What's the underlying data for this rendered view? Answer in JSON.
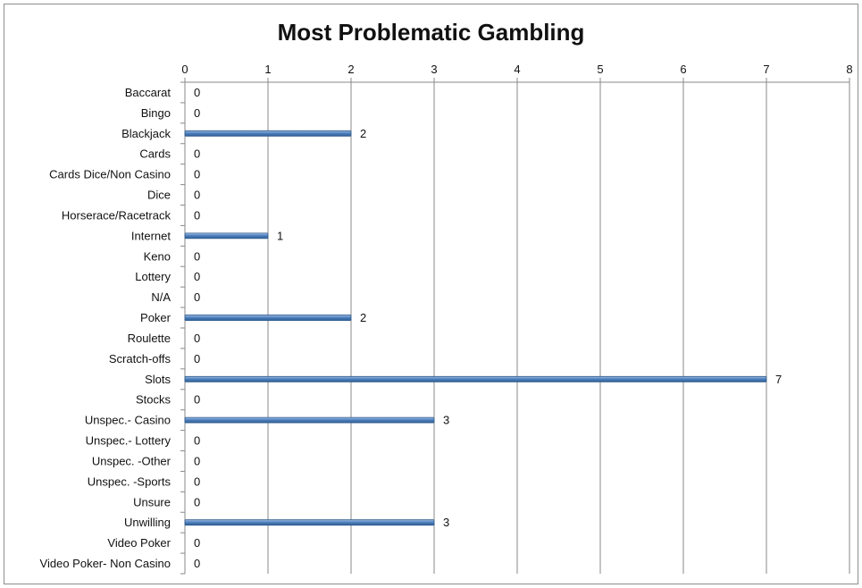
{
  "chart_data": {
    "type": "bar",
    "orientation": "horizontal",
    "title": "Most Problematic Gambling",
    "xlabel": "",
    "ylabel": "",
    "xlim": [
      0,
      8
    ],
    "x_ticks": [
      0,
      1,
      2,
      3,
      4,
      5,
      6,
      7,
      8
    ],
    "x_axis_position": "top",
    "grid": "vertical",
    "legend": "none",
    "bar_color": "#4f81bd",
    "categories": [
      "Baccarat",
      "Bingo",
      "Blackjack",
      "Cards",
      "Cards Dice/Non Casino",
      "Dice",
      "Horserace/Racetrack",
      "Internet",
      "Keno",
      "Lottery",
      "N/A",
      "Poker",
      "Roulette",
      "Scratch-offs",
      "Slots",
      "Stocks",
      "Unspec.- Casino",
      "Unspec.- Lottery",
      "Unspec. -Other",
      "Unspec. -Sports",
      "Unsure",
      "Unwilling",
      "Video Poker",
      "Video Poker- Non Casino"
    ],
    "values": [
      0,
      0,
      2,
      0,
      0,
      0,
      0,
      1,
      0,
      0,
      0,
      2,
      0,
      0,
      7,
      0,
      3,
      0,
      0,
      0,
      0,
      3,
      0,
      0
    ]
  }
}
